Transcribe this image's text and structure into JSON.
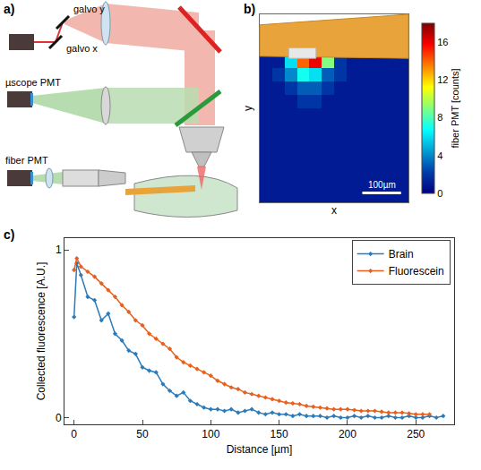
{
  "diagram": {
    "letter": "a)",
    "labels": {
      "galvo_y": "galvo y",
      "galvo_x": "galvo x",
      "scope_pmt": "µscope PMT",
      "fiber_pmt": "fiber PMT"
    }
  },
  "chart_data": [
    {
      "type": "heatmap",
      "letter": "b)",
      "x_label": "x",
      "y_label": "y",
      "tick_labels": false,
      "x": [
        16,
        48,
        80,
        112,
        144,
        176,
        208,
        240,
        272,
        304,
        336,
        368
      ],
      "y": [
        16,
        48,
        80,
        112,
        144,
        176,
        208,
        240,
        272,
        304,
        336,
        368,
        400,
        432
      ],
      "z": [
        [
          null,
          null,
          null,
          null,
          null,
          null,
          null,
          null,
          null,
          null,
          null,
          null
        ],
        [
          null,
          null,
          null,
          null,
          null,
          null,
          null,
          null,
          null,
          null,
          null,
          null
        ],
        [
          null,
          null,
          null,
          null,
          null,
          null,
          null,
          null,
          null,
          null,
          null,
          null
        ],
        [
          1,
          1,
          6,
          14,
          16,
          9,
          2,
          1,
          1,
          1,
          1,
          1
        ],
        [
          1,
          2,
          4,
          7,
          6,
          3,
          2,
          1,
          1,
          1,
          1,
          1
        ],
        [
          1,
          1,
          2,
          3,
          3,
          2,
          1,
          1,
          1,
          1,
          1,
          1
        ],
        [
          1,
          1,
          1,
          2,
          2,
          1,
          1,
          1,
          1,
          1,
          1,
          1
        ],
        [
          1,
          1,
          1,
          1,
          1,
          1,
          1,
          1,
          1,
          1,
          1,
          1
        ],
        [
          1,
          1,
          1,
          1,
          1,
          1,
          1,
          1,
          1,
          1,
          1,
          1
        ],
        [
          1,
          1,
          1,
          1,
          1,
          1,
          1,
          1,
          1,
          1,
          1,
          1
        ],
        [
          1,
          1,
          1,
          1,
          1,
          1,
          1,
          1,
          1,
          1,
          1,
          1
        ],
        [
          1,
          1,
          1,
          1,
          1,
          1,
          1,
          1,
          1,
          1,
          1,
          1
        ],
        [
          1,
          1,
          1,
          1,
          1,
          1,
          1,
          1,
          1,
          1,
          1,
          1
        ],
        [
          1,
          1,
          1,
          1,
          1,
          1,
          1,
          1,
          1,
          1,
          1,
          1
        ]
      ],
      "xlim": [
        0,
        384
      ],
      "ylim": [
        448,
        0
      ],
      "colorbar": {
        "title": "fiber PMT [counts]",
        "range": [
          0,
          18
        ],
        "ticks": [
          0,
          4,
          8,
          12,
          16
        ]
      },
      "scale_bar": {
        "label": "100µm",
        "length": 100
      }
    },
    {
      "type": "line",
      "letter": "c)",
      "x_label": "Distance [µm]",
      "y_label": "Collected fluorescence [A.U.]",
      "xlim": [
        -7,
        278
      ],
      "ylim": [
        -0.04,
        1.07
      ],
      "xticks": [
        0,
        50,
        100,
        150,
        200,
        250
      ],
      "yticks": [
        0,
        1
      ],
      "legend": "upper right",
      "marker": "diamond",
      "series": [
        {
          "name": "Brain",
          "color": "#2b7bba",
          "x": [
            0,
            2,
            5,
            10,
            15,
            20,
            25,
            30,
            35,
            40,
            45,
            50,
            55,
            60,
            65,
            70,
            75,
            80,
            85,
            90,
            95,
            100,
            105,
            110,
            115,
            120,
            125,
            130,
            135,
            140,
            145,
            150,
            155,
            160,
            165,
            170,
            175,
            180,
            185,
            190,
            195,
            200,
            205,
            210,
            215,
            220,
            225,
            230,
            235,
            240,
            245,
            250,
            255,
            260,
            265,
            270
          ],
          "values": [
            0.6,
            0.92,
            0.85,
            0.72,
            0.7,
            0.58,
            0.62,
            0.5,
            0.46,
            0.4,
            0.38,
            0.3,
            0.28,
            0.27,
            0.2,
            0.16,
            0.13,
            0.15,
            0.1,
            0.08,
            0.06,
            0.05,
            0.05,
            0.04,
            0.05,
            0.03,
            0.04,
            0.05,
            0.03,
            0.02,
            0.03,
            0.02,
            0.02,
            0.01,
            0.02,
            0.01,
            0.01,
            0.01,
            0.0,
            0.01,
            0.0,
            0.0,
            0.01,
            0.0,
            0.01,
            0.0,
            0.0,
            0.01,
            0.0,
            0.0,
            0.01,
            0.0,
            0.0,
            0.01,
            0.0,
            0.01
          ]
        },
        {
          "name": "Fluorescein",
          "color": "#e8601c",
          "x": [
            0,
            2,
            5,
            10,
            15,
            20,
            25,
            30,
            35,
            40,
            45,
            50,
            55,
            60,
            65,
            70,
            75,
            80,
            85,
            90,
            95,
            100,
            105,
            110,
            115,
            120,
            125,
            130,
            135,
            140,
            145,
            150,
            155,
            160,
            165,
            170,
            175,
            180,
            185,
            190,
            195,
            200,
            205,
            210,
            215,
            220,
            225,
            230,
            235,
            240,
            245,
            250,
            255,
            260
          ],
          "values": [
            0.88,
            0.95,
            0.9,
            0.87,
            0.84,
            0.8,
            0.76,
            0.72,
            0.67,
            0.63,
            0.58,
            0.55,
            0.5,
            0.47,
            0.44,
            0.41,
            0.36,
            0.33,
            0.31,
            0.29,
            0.27,
            0.25,
            0.22,
            0.2,
            0.18,
            0.17,
            0.15,
            0.14,
            0.13,
            0.12,
            0.11,
            0.1,
            0.09,
            0.085,
            0.08,
            0.07,
            0.065,
            0.06,
            0.055,
            0.05,
            0.05,
            0.05,
            0.045,
            0.04,
            0.04,
            0.04,
            0.035,
            0.03,
            0.03,
            0.03,
            0.025,
            0.02,
            0.02,
            0.02
          ]
        }
      ]
    }
  ]
}
